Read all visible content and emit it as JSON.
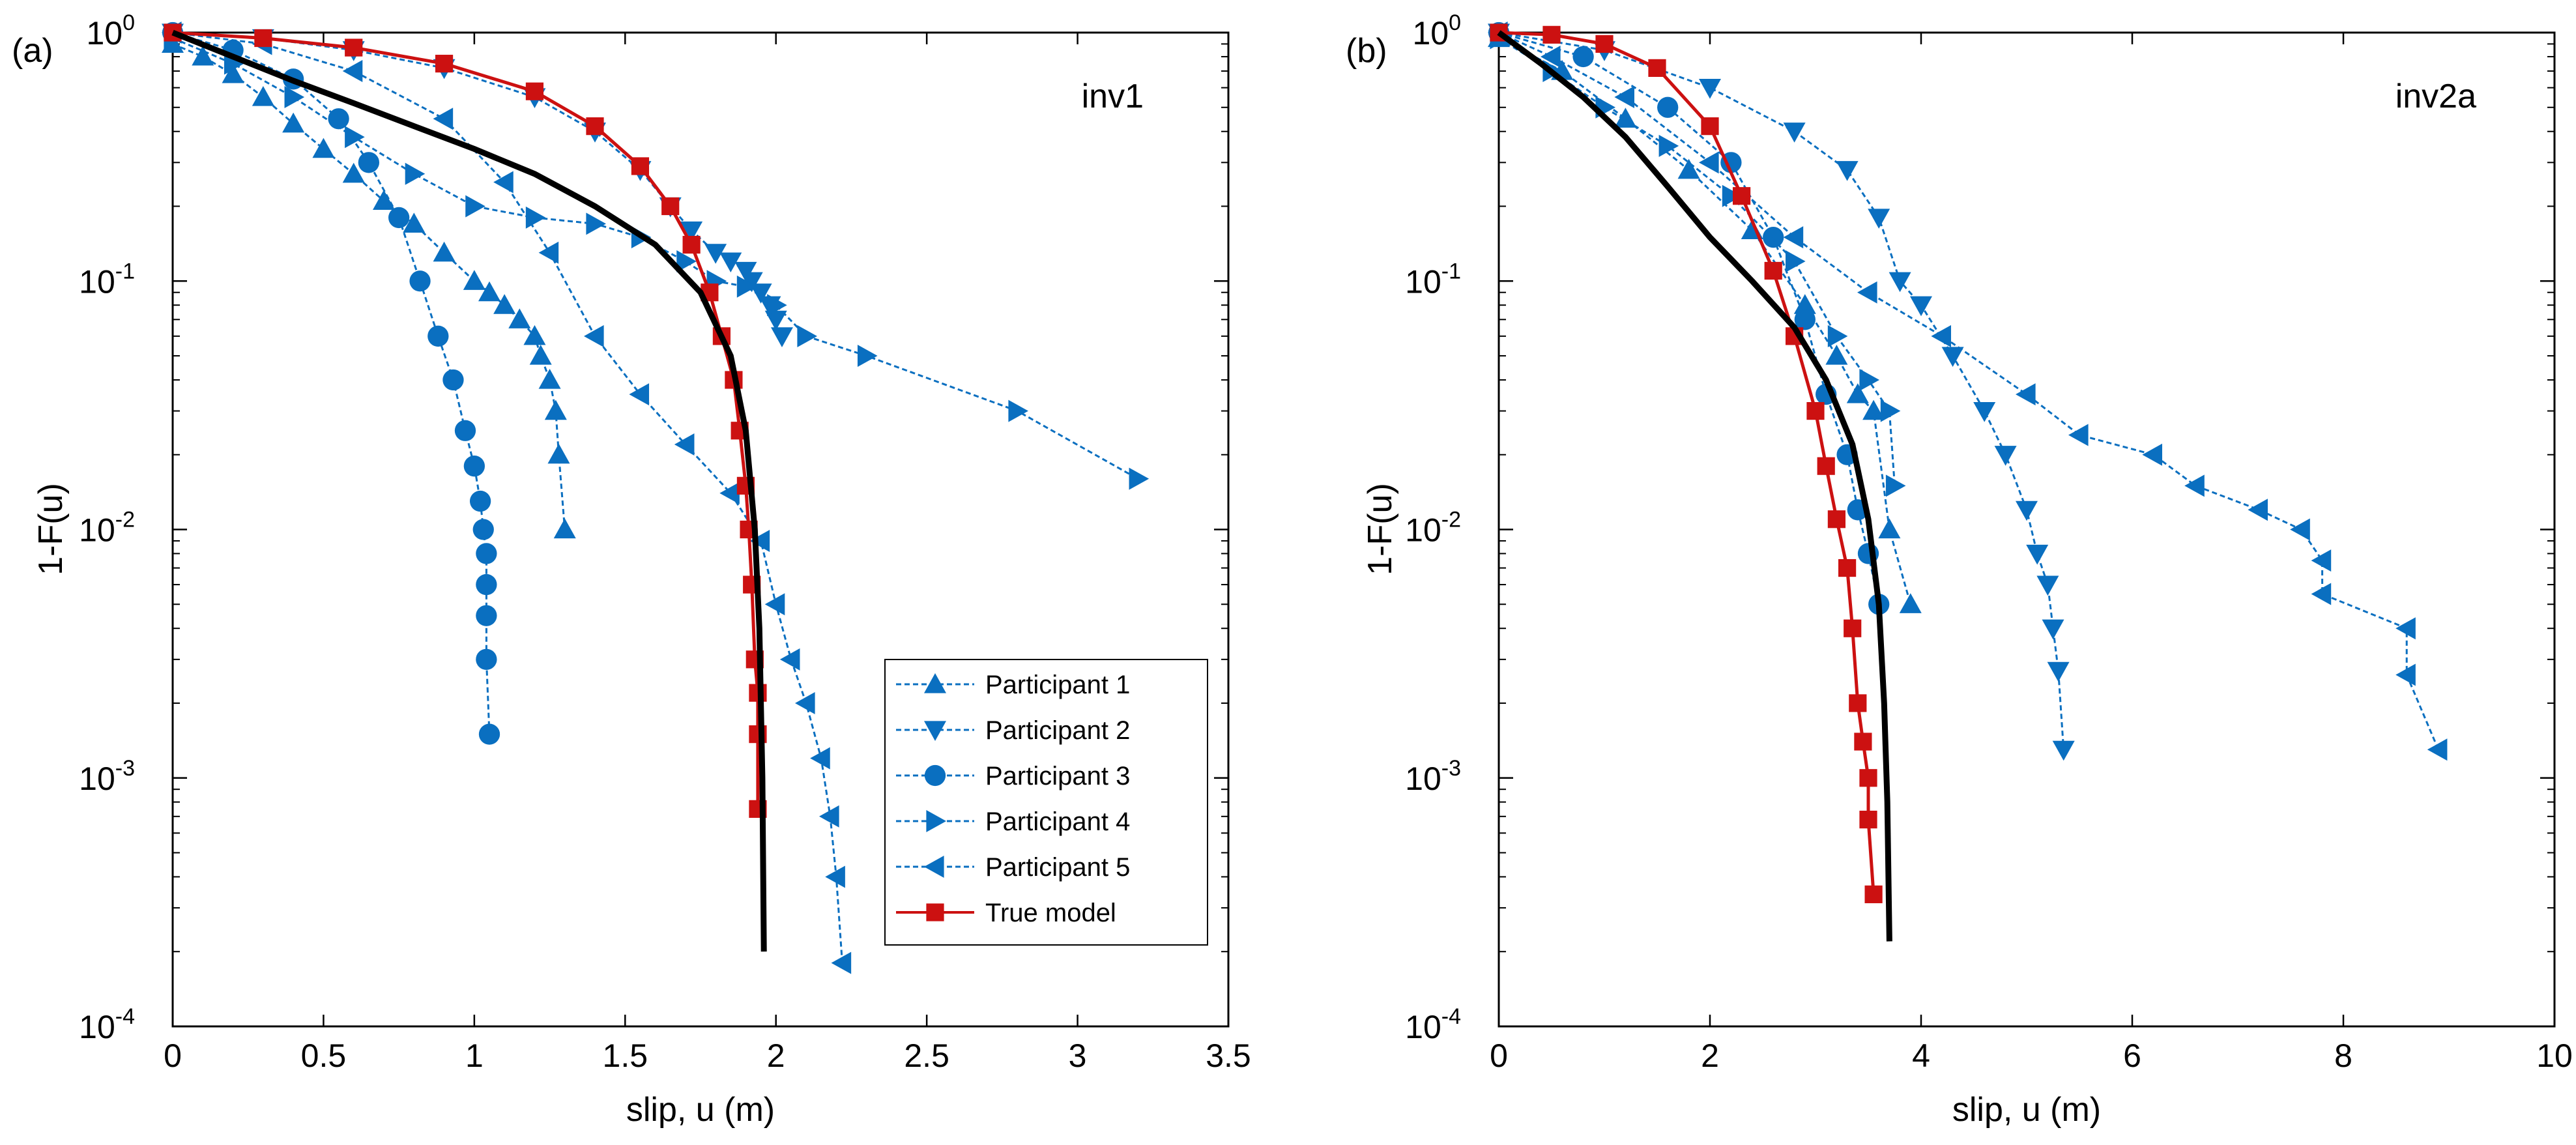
{
  "chart_data": [
    {
      "type": "line",
      "panel_label": "(a)",
      "annotation": "inv1",
      "xlabel": "slip, u (m)",
      "ylabel": "1-F(u)",
      "xlim": [
        0,
        3.5
      ],
      "ylim": [
        0.0001,
        1
      ],
      "yscale": "log",
      "grid": false,
      "legend_position": "bottom-right",
      "xticks": [
        "0",
        "0.5",
        "1",
        "1.5",
        "2",
        "2.5",
        "3",
        "3.5"
      ],
      "yticks": [
        {
          "base": "10",
          "exp": "-4"
        },
        {
          "base": "10",
          "exp": "-3"
        },
        {
          "base": "10",
          "exp": "-2"
        },
        {
          "base": "10",
          "exp": "-1"
        },
        {
          "base": "10",
          "exp": "0"
        }
      ],
      "series": [
        {
          "name": "Participant 1",
          "marker": "triangle-up",
          "color": "#0a6fc0",
          "line": "dashed",
          "points": [
            [
              0,
              0.9
            ],
            [
              0.1,
              0.8
            ],
            [
              0.2,
              0.68
            ],
            [
              0.3,
              0.55
            ],
            [
              0.4,
              0.43
            ],
            [
              0.5,
              0.34
            ],
            [
              0.6,
              0.27
            ],
            [
              0.7,
              0.21
            ],
            [
              0.8,
              0.17
            ],
            [
              0.9,
              0.13
            ],
            [
              1.0,
              0.1
            ],
            [
              1.05,
              0.09
            ],
            [
              1.1,
              0.08
            ],
            [
              1.15,
              0.07
            ],
            [
              1.2,
              0.06
            ],
            [
              1.22,
              0.05
            ],
            [
              1.25,
              0.04
            ],
            [
              1.27,
              0.03
            ],
            [
              1.28,
              0.02
            ],
            [
              1.3,
              0.01
            ]
          ]
        },
        {
          "name": "Participant 2",
          "marker": "triangle-down",
          "color": "#0a6fc0",
          "line": "dashed",
          "points": [
            [
              0,
              1.0
            ],
            [
              0.3,
              0.95
            ],
            [
              0.6,
              0.85
            ],
            [
              0.9,
              0.72
            ],
            [
              1.2,
              0.55
            ],
            [
              1.4,
              0.4
            ],
            [
              1.55,
              0.28
            ],
            [
              1.65,
              0.2
            ],
            [
              1.72,
              0.16
            ],
            [
              1.8,
              0.13
            ],
            [
              1.85,
              0.12
            ],
            [
              1.9,
              0.11
            ],
            [
              1.92,
              0.1
            ],
            [
              1.95,
              0.09
            ],
            [
              1.98,
              0.08
            ],
            [
              2.0,
              0.07
            ],
            [
              2.02,
              0.06
            ]
          ]
        },
        {
          "name": "Participant 3",
          "marker": "circle",
          "color": "#0a6fc0",
          "line": "dashed",
          "points": [
            [
              0,
              1.0
            ],
            [
              0.2,
              0.85
            ],
            [
              0.4,
              0.65
            ],
            [
              0.55,
              0.45
            ],
            [
              0.65,
              0.3
            ],
            [
              0.75,
              0.18
            ],
            [
              0.82,
              0.1
            ],
            [
              0.88,
              0.06
            ],
            [
              0.93,
              0.04
            ],
            [
              0.97,
              0.025
            ],
            [
              1.0,
              0.018
            ],
            [
              1.02,
              0.013
            ],
            [
              1.03,
              0.01
            ],
            [
              1.04,
              0.008
            ],
            [
              1.04,
              0.006
            ],
            [
              1.04,
              0.0045
            ],
            [
              1.04,
              0.003
            ],
            [
              1.05,
              0.0015
            ]
          ]
        },
        {
          "name": "Participant 4",
          "marker": "triangle-right",
          "color": "#0a6fc0",
          "line": "dashed",
          "points": [
            [
              0,
              0.95
            ],
            [
              0.2,
              0.75
            ],
            [
              0.4,
              0.55
            ],
            [
              0.6,
              0.38
            ],
            [
              0.8,
              0.27
            ],
            [
              1.0,
              0.2
            ],
            [
              1.2,
              0.18
            ],
            [
              1.4,
              0.17
            ],
            [
              1.55,
              0.15
            ],
            [
              1.7,
              0.12
            ],
            [
              1.8,
              0.1
            ],
            [
              1.9,
              0.095
            ],
            [
              2.0,
              0.08
            ],
            [
              2.1,
              0.06
            ],
            [
              2.3,
              0.05
            ],
            [
              2.8,
              0.03
            ],
            [
              3.2,
              0.016
            ]
          ]
        },
        {
          "name": "Participant 5",
          "marker": "triangle-left",
          "color": "#0a6fc0",
          "line": "dashed",
          "points": [
            [
              0,
              1.0
            ],
            [
              0.3,
              0.9
            ],
            [
              0.6,
              0.7
            ],
            [
              0.9,
              0.45
            ],
            [
              1.1,
              0.25
            ],
            [
              1.25,
              0.13
            ],
            [
              1.4,
              0.06
            ],
            [
              1.55,
              0.035
            ],
            [
              1.7,
              0.022
            ],
            [
              1.85,
              0.014
            ],
            [
              1.95,
              0.009
            ],
            [
              2.0,
              0.005
            ],
            [
              2.05,
              0.003
            ],
            [
              2.1,
              0.002
            ],
            [
              2.15,
              0.0012
            ],
            [
              2.18,
              0.0007
            ],
            [
              2.2,
              0.0004
            ],
            [
              2.22,
              0.00018
            ]
          ]
        },
        {
          "name": "True model",
          "marker": "square",
          "color": "#cc1111",
          "line": "solid",
          "points": [
            [
              0,
              1.0
            ],
            [
              0.3,
              0.95
            ],
            [
              0.6,
              0.87
            ],
            [
              0.9,
              0.75
            ],
            [
              1.2,
              0.58
            ],
            [
              1.4,
              0.42
            ],
            [
              1.55,
              0.29
            ],
            [
              1.65,
              0.2
            ],
            [
              1.72,
              0.14
            ],
            [
              1.78,
              0.09
            ],
            [
              1.82,
              0.06
            ],
            [
              1.86,
              0.04
            ],
            [
              1.88,
              0.025
            ],
            [
              1.9,
              0.015
            ],
            [
              1.91,
              0.01
            ],
            [
              1.92,
              0.006
            ],
            [
              1.93,
              0.003
            ],
            [
              1.94,
              0.0022
            ],
            [
              1.94,
              0.0015
            ],
            [
              1.94,
              0.00075
            ]
          ]
        },
        {
          "name": "",
          "marker": "none",
          "color": "#000000",
          "line": "solid",
          "points": [
            [
              0,
              1.0
            ],
            [
              0.2,
              0.8
            ],
            [
              0.4,
              0.64
            ],
            [
              0.6,
              0.52
            ],
            [
              0.8,
              0.42
            ],
            [
              1.0,
              0.34
            ],
            [
              1.2,
              0.27
            ],
            [
              1.4,
              0.2
            ],
            [
              1.6,
              0.14
            ],
            [
              1.75,
              0.09
            ],
            [
              1.85,
              0.05
            ],
            [
              1.9,
              0.025
            ],
            [
              1.93,
              0.01
            ],
            [
              1.945,
              0.004
            ],
            [
              1.955,
              0.001
            ],
            [
              1.96,
              0.0002
            ]
          ]
        }
      ]
    },
    {
      "type": "line",
      "panel_label": "(b)",
      "annotation": "inv2a",
      "xlabel": "slip, u (m)",
      "ylabel": "1-F(u)",
      "xlim": [
        0,
        10
      ],
      "ylim": [
        0.0001,
        1
      ],
      "yscale": "log",
      "grid": false,
      "xticks": [
        "0",
        "2",
        "4",
        "6",
        "8",
        "10"
      ],
      "yticks": [
        {
          "base": "10",
          "exp": "-4"
        },
        {
          "base": "10",
          "exp": "-3"
        },
        {
          "base": "10",
          "exp": "-2"
        },
        {
          "base": "10",
          "exp": "-1"
        },
        {
          "base": "10",
          "exp": "0"
        }
      ],
      "series": [
        {
          "name": "Participant 1",
          "marker": "triangle-up",
          "color": "#0a6fc0",
          "line": "dashed",
          "points": [
            [
              0,
              0.95
            ],
            [
              0.6,
              0.7
            ],
            [
              1.2,
              0.45
            ],
            [
              1.8,
              0.28
            ],
            [
              2.4,
              0.16
            ],
            [
              2.9,
              0.08
            ],
            [
              3.2,
              0.05
            ],
            [
              3.4,
              0.035
            ],
            [
              3.55,
              0.03
            ],
            [
              3.7,
              0.01
            ],
            [
              3.9,
              0.005
            ]
          ]
        },
        {
          "name": "Participant 2",
          "marker": "triangle-down",
          "color": "#0a6fc0",
          "line": "dashed",
          "points": [
            [
              0,
              1.0
            ],
            [
              1.0,
              0.85
            ],
            [
              2.0,
              0.6
            ],
            [
              2.8,
              0.4
            ],
            [
              3.3,
              0.28
            ],
            [
              3.6,
              0.18
            ],
            [
              3.8,
              0.1
            ],
            [
              4.0,
              0.08
            ],
            [
              4.3,
              0.05
            ],
            [
              4.6,
              0.03
            ],
            [
              4.8,
              0.02
            ],
            [
              5.0,
              0.012
            ],
            [
              5.1,
              0.008
            ],
            [
              5.2,
              0.006
            ],
            [
              5.25,
              0.004
            ],
            [
              5.3,
              0.0027
            ],
            [
              5.35,
              0.0013
            ]
          ]
        },
        {
          "name": "Participant 3",
          "marker": "circle",
          "color": "#0a6fc0",
          "line": "dashed",
          "points": [
            [
              0,
              1.0
            ],
            [
              0.8,
              0.8
            ],
            [
              1.6,
              0.5
            ],
            [
              2.2,
              0.3
            ],
            [
              2.6,
              0.15
            ],
            [
              2.9,
              0.07
            ],
            [
              3.1,
              0.035
            ],
            [
              3.3,
              0.02
            ],
            [
              3.4,
              0.012
            ],
            [
              3.5,
              0.008
            ],
            [
              3.6,
              0.005
            ]
          ]
        },
        {
          "name": "Participant 4",
          "marker": "triangle-right",
          "color": "#0a6fc0",
          "line": "dashed",
          "points": [
            [
              0,
              0.95
            ],
            [
              0.5,
              0.7
            ],
            [
              1.0,
              0.5
            ],
            [
              1.6,
              0.35
            ],
            [
              2.2,
              0.22
            ],
            [
              2.8,
              0.12
            ],
            [
              3.2,
              0.06
            ],
            [
              3.5,
              0.04
            ],
            [
              3.7,
              0.03
            ],
            [
              3.75,
              0.015
            ]
          ]
        },
        {
          "name": "Participant 5",
          "marker": "triangle-left",
          "color": "#0a6fc0",
          "line": "dashed",
          "points": [
            [
              0,
              1.0
            ],
            [
              0.5,
              0.8
            ],
            [
              1.2,
              0.55
            ],
            [
              2.0,
              0.3
            ],
            [
              2.8,
              0.15
            ],
            [
              3.5,
              0.09
            ],
            [
              4.2,
              0.06
            ],
            [
              5.0,
              0.035
            ],
            [
              5.5,
              0.024
            ],
            [
              6.2,
              0.02
            ],
            [
              6.6,
              0.015
            ],
            [
              7.2,
              0.012
            ],
            [
              7.6,
              0.01
            ],
            [
              7.8,
              0.0075
            ],
            [
              7.8,
              0.0055
            ],
            [
              8.6,
              0.004
            ],
            [
              8.6,
              0.0026
            ],
            [
              8.9,
              0.0013
            ]
          ]
        },
        {
          "name": "True model",
          "marker": "square",
          "color": "#cc1111",
          "line": "solid",
          "points": [
            [
              0,
              1.0
            ],
            [
              0.5,
              0.98
            ],
            [
              1.0,
              0.9
            ],
            [
              1.5,
              0.72
            ],
            [
              2.0,
              0.42
            ],
            [
              2.3,
              0.22
            ],
            [
              2.6,
              0.11
            ],
            [
              2.8,
              0.06
            ],
            [
              3.0,
              0.03
            ],
            [
              3.1,
              0.018
            ],
            [
              3.2,
              0.011
            ],
            [
              3.3,
              0.007
            ],
            [
              3.35,
              0.004
            ],
            [
              3.4,
              0.002
            ],
            [
              3.45,
              0.0014
            ],
            [
              3.5,
              0.001
            ],
            [
              3.5,
              0.00068
            ],
            [
              3.55,
              0.00034
            ]
          ]
        },
        {
          "name": "",
          "marker": "none",
          "color": "#000000",
          "line": "solid",
          "points": [
            [
              0,
              1.0
            ],
            [
              0.4,
              0.75
            ],
            [
              0.8,
              0.55
            ],
            [
              1.2,
              0.38
            ],
            [
              1.6,
              0.24
            ],
            [
              2.0,
              0.15
            ],
            [
              2.4,
              0.1
            ],
            [
              2.8,
              0.065
            ],
            [
              3.1,
              0.04
            ],
            [
              3.35,
              0.022
            ],
            [
              3.5,
              0.011
            ],
            [
              3.6,
              0.005
            ],
            [
              3.65,
              0.002
            ],
            [
              3.68,
              0.0008
            ],
            [
              3.7,
              0.00022
            ]
          ]
        }
      ]
    }
  ]
}
